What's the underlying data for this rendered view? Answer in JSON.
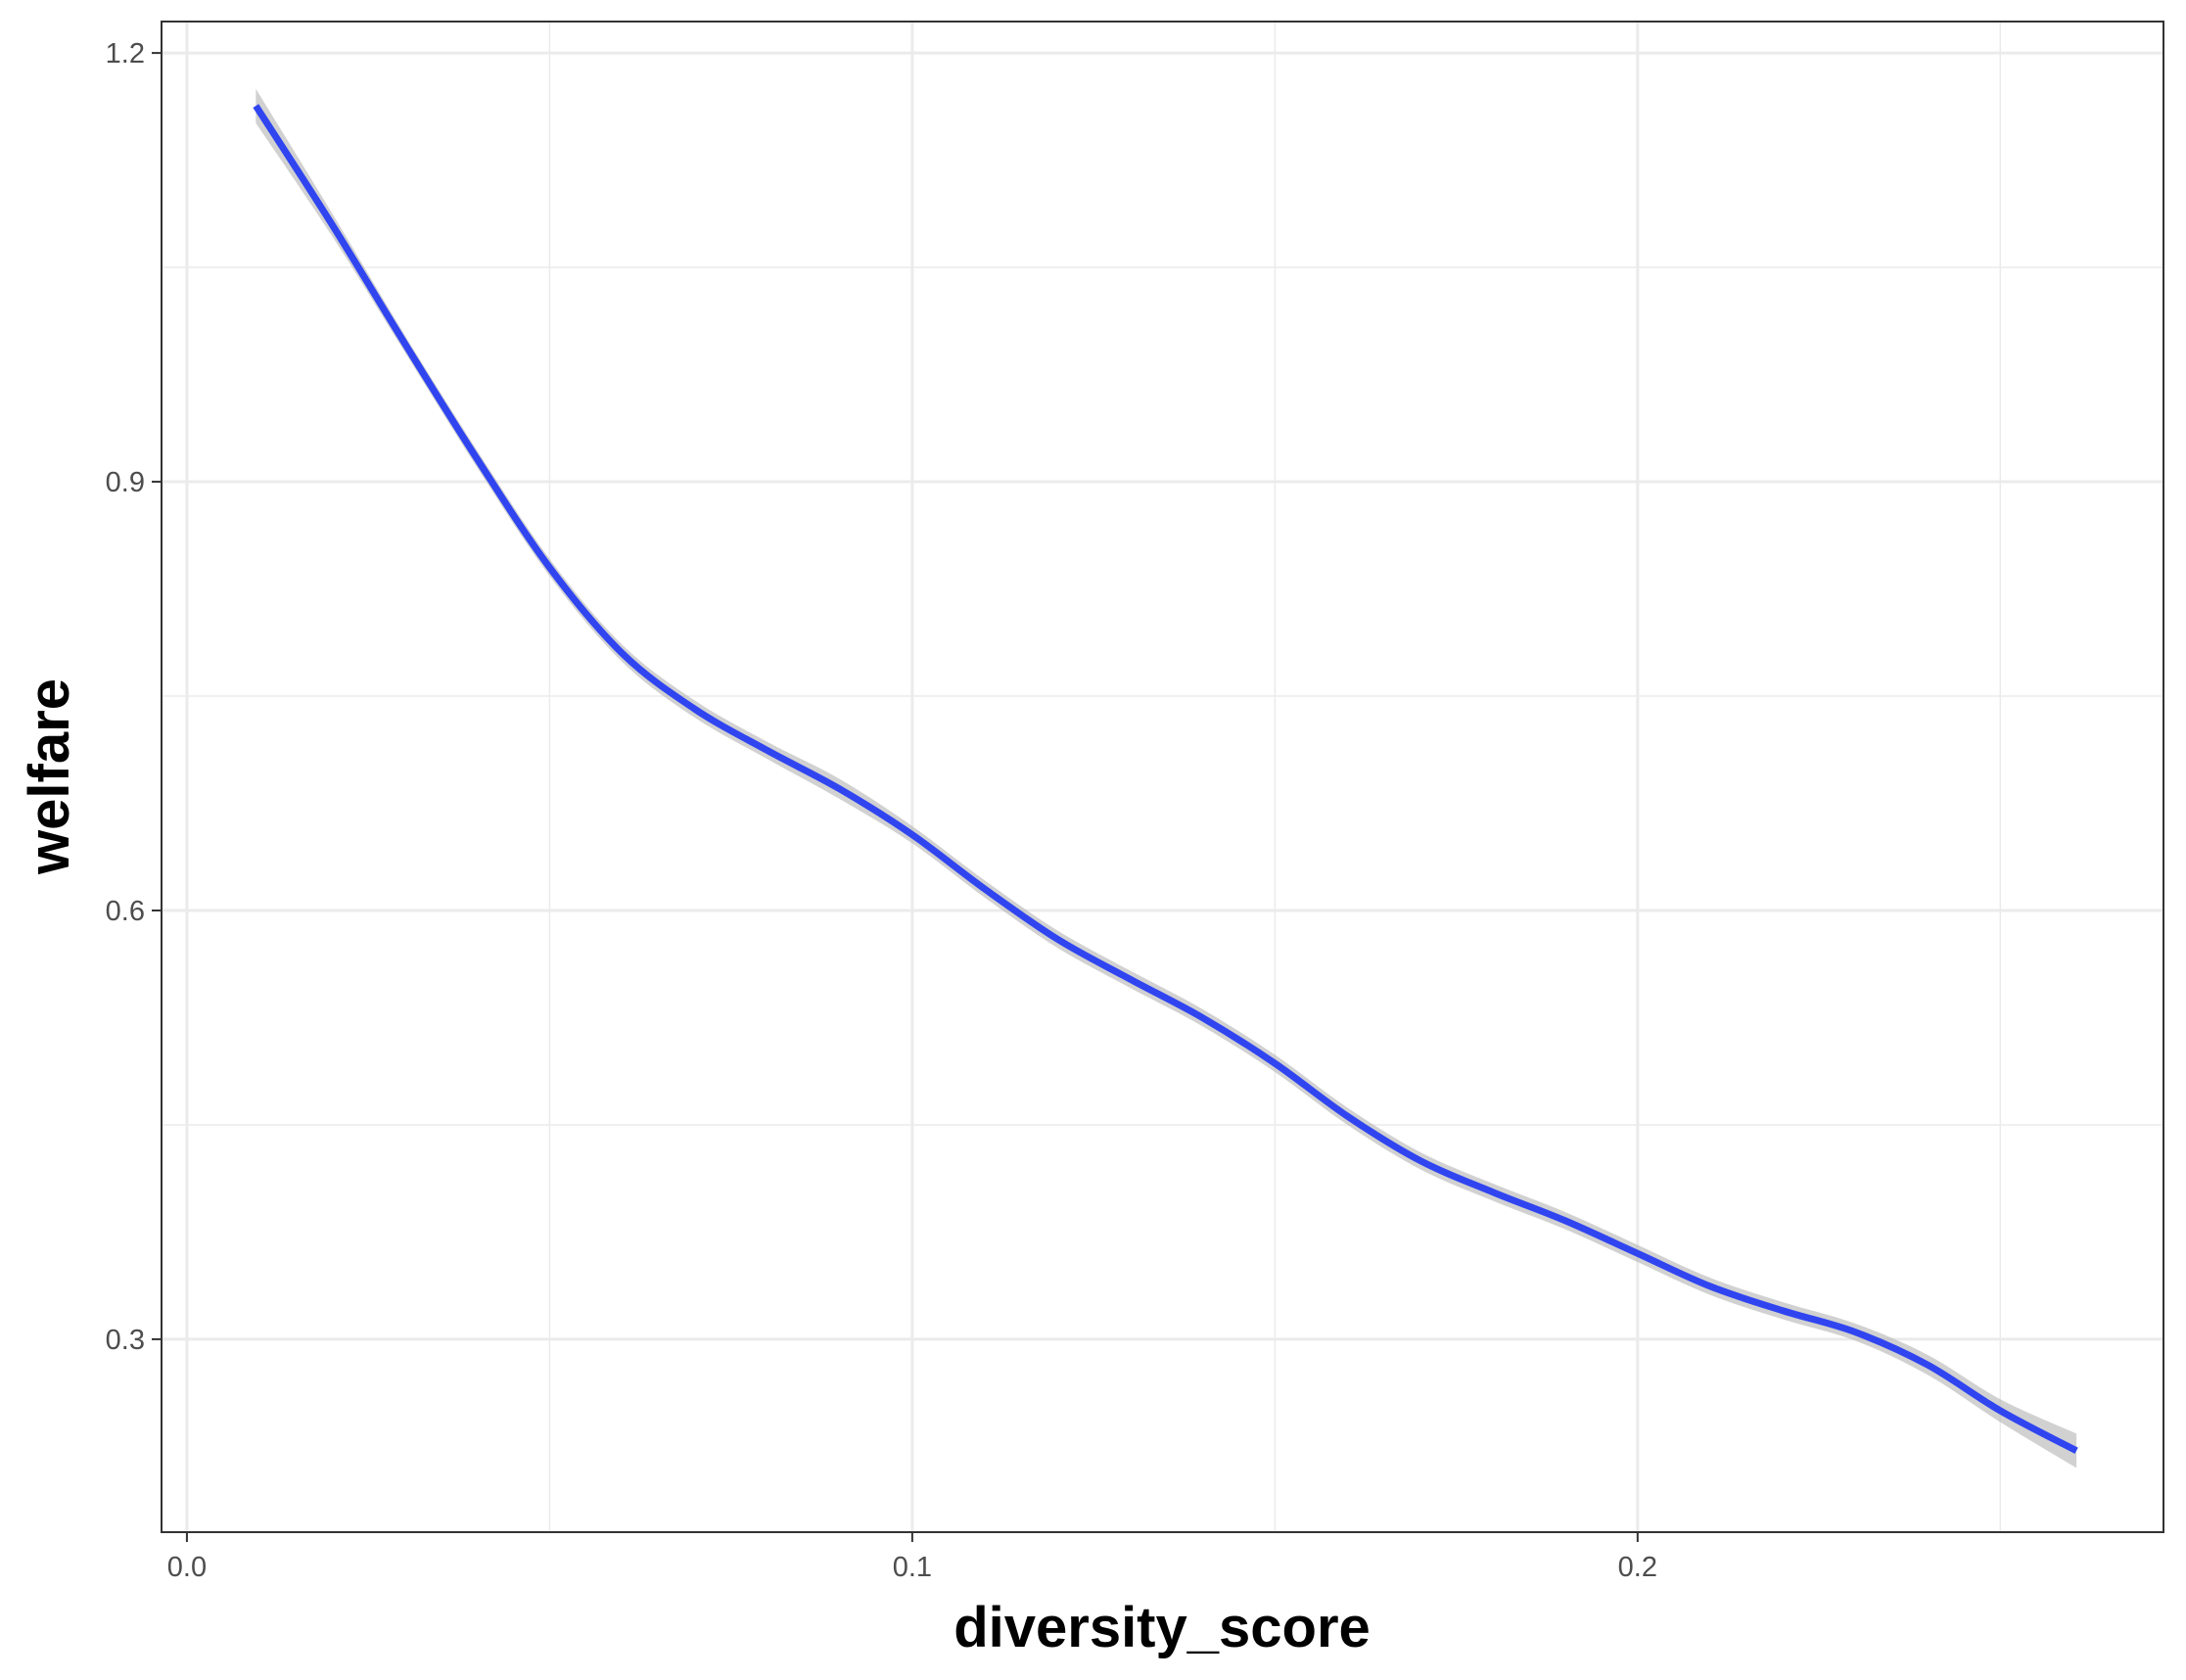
{
  "chart_data": {
    "type": "line",
    "title": "",
    "xlabel": "diversity_score",
    "ylabel": "welfare",
    "xlim": [
      -0.0035,
      0.2725
    ],
    "ylim": [
      0.165,
      1.222
    ],
    "x_ticks": [
      {
        "value": 0.0,
        "label": "0.0"
      },
      {
        "value": 0.1,
        "label": "0.1"
      },
      {
        "value": 0.2,
        "label": "0.2"
      }
    ],
    "y_ticks": [
      {
        "value": 0.3,
        "label": "0.3"
      },
      {
        "value": 0.6,
        "label": "0.6"
      },
      {
        "value": 0.9,
        "label": "0.9"
      },
      {
        "value": 1.2,
        "label": "1.2"
      }
    ],
    "x_minor": [
      0.05,
      0.15,
      0.25
    ],
    "y_minor": [
      0.45,
      0.75,
      1.05
    ],
    "grid": true,
    "legend": "none",
    "colors": {
      "line": "#3045F0",
      "ribbon": "#B3B3B3",
      "grid": "#EBEBEB",
      "panel_border": "#333333"
    },
    "series": [
      {
        "x": [
          0.0095,
          0.02,
          0.03,
          0.04,
          0.05,
          0.06,
          0.07,
          0.08,
          0.09,
          0.1,
          0.11,
          0.12,
          0.13,
          0.14,
          0.15,
          0.16,
          0.17,
          0.18,
          0.19,
          0.2,
          0.21,
          0.22,
          0.23,
          0.24,
          0.25,
          0.2605
        ],
        "y": [
          1.163,
          1.08,
          0.997,
          0.916,
          0.84,
          0.78,
          0.741,
          0.712,
          0.685,
          0.653,
          0.615,
          0.58,
          0.552,
          0.525,
          0.493,
          0.456,
          0.425,
          0.403,
          0.383,
          0.36,
          0.337,
          0.32,
          0.305,
          0.282,
          0.25,
          0.222
        ],
        "ci_halfwidth": [
          0.012,
          0.008,
          0.006,
          0.006,
          0.006,
          0.006,
          0.006,
          0.006,
          0.007,
          0.006,
          0.006,
          0.006,
          0.006,
          0.006,
          0.006,
          0.006,
          0.006,
          0.006,
          0.006,
          0.006,
          0.006,
          0.006,
          0.006,
          0.007,
          0.008,
          0.012
        ]
      }
    ]
  }
}
